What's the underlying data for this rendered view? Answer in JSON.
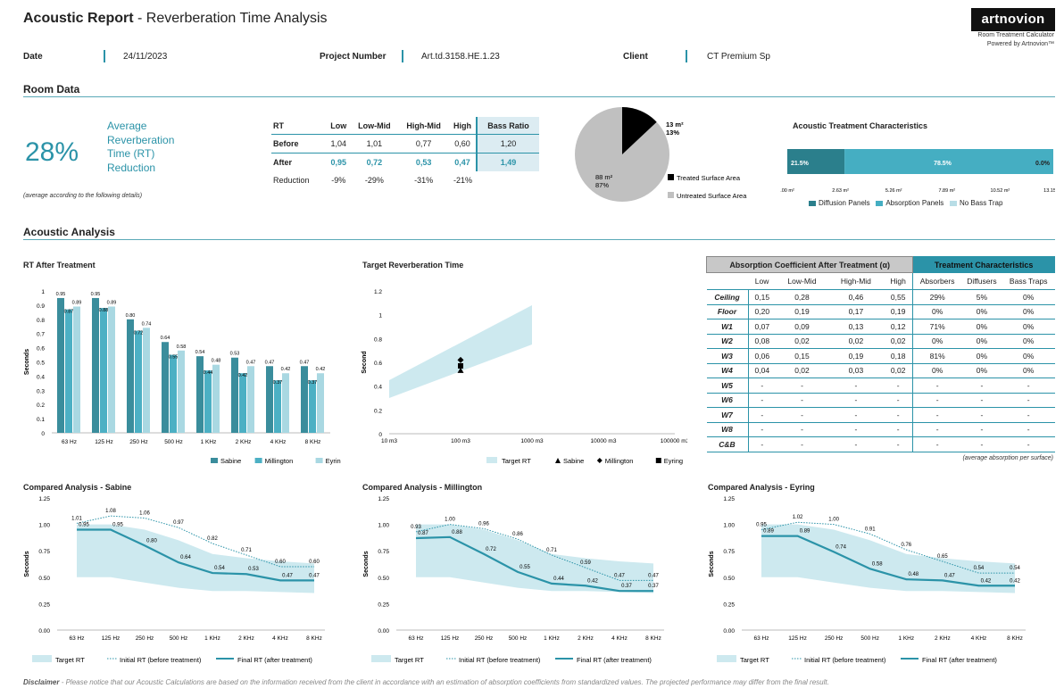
{
  "header": {
    "title_bold": "Acoustic Report",
    "title_rest": " - Reverberation Time Analysis",
    "logo": "artnovion",
    "logo_sub1": "Room Treatment Calculator",
    "logo_sub2": "Powered by Artnovion™"
  },
  "meta": {
    "date_label": "Date",
    "date_value": "24/11/2023",
    "project_label": "Project Number",
    "project_value": "Art.td.3158.HE.1.23",
    "client_label": "Client",
    "client_value": "CT Premium Sp"
  },
  "room_data": {
    "title": "Room Data",
    "percent": "28%",
    "avg_lines": [
      "Average",
      "Reverberation",
      "Time (RT)",
      "Reduction"
    ],
    "note": "(average according to the following details)",
    "rt_table": {
      "headers": [
        "RT",
        "Low",
        "Low-Mid",
        "High-Mid",
        "High",
        "Bass Ratio"
      ],
      "rows": [
        {
          "label": "Before",
          "values": [
            "1,04",
            "1,01",
            "0,77",
            "0,60",
            "1,20"
          ]
        },
        {
          "label": "After",
          "values": [
            "0,95",
            "0,72",
            "0,53",
            "0,47",
            "1,49"
          ]
        },
        {
          "label": "Reduction",
          "values": [
            "-9%",
            "-29%",
            "-31%",
            "-21%",
            ""
          ]
        }
      ]
    },
    "pie": {
      "treated_area": "13 m²",
      "treated_pct": "13%",
      "untreated_area": "88 m²",
      "untreated_pct": "87%",
      "treated_fraction": 0.13,
      "legend_treated": "Treated Surface Area",
      "legend_untreated": "Untreated Surface Area",
      "treated_color": "#000000",
      "untreated_color": "#c0c0c0"
    },
    "treatment_characteristics": {
      "title": "Acoustic Treatment Characteristics",
      "segments": [
        {
          "label": "21.5%",
          "fraction": 0.215,
          "color": "#2b7f8c"
        },
        {
          "label": "78.5%",
          "fraction": 0.785,
          "color": "#45aec2"
        },
        {
          "label": "0.0%",
          "fraction": 0.0,
          "color": "#b8dde6"
        }
      ],
      "axis_ticks": [
        ".00 m²",
        "2.63 m²",
        "5.26 m²",
        "7.89 m²",
        "10.52 m²",
        "13.15 m²"
      ],
      "legend": [
        "Diffusion Panels",
        "Absorption Panels",
        "No Bass Trap"
      ]
    }
  },
  "acoustic_analysis": {
    "title": "Acoustic Analysis",
    "table_note": "(average absorption per surface)",
    "absorption_table": {
      "title": "Absorption Coefficient After Treatment (α)",
      "treatment_title": "Treatment Characteristics",
      "headers": [
        "Low",
        "Low-Mid",
        "High-Mid",
        "High",
        "Absorbers",
        "Diffusers",
        "Bass Traps"
      ],
      "rows": [
        {
          "label": "Ceiling",
          "values": [
            "0,15",
            "0,28",
            "0,46",
            "0,55",
            "29%",
            "5%",
            "0%"
          ]
        },
        {
          "label": "Floor",
          "values": [
            "0,20",
            "0,19",
            "0,17",
            "0,19",
            "0%",
            "0%",
            "0%"
          ]
        },
        {
          "label": "W1",
          "values": [
            "0,07",
            "0,09",
            "0,13",
            "0,12",
            "71%",
            "0%",
            "0%"
          ]
        },
        {
          "label": "W2",
          "values": [
            "0,08",
            "0,02",
            "0,02",
            "0,02",
            "0%",
            "0%",
            "0%"
          ]
        },
        {
          "label": "W3",
          "values": [
            "0,06",
            "0,15",
            "0,19",
            "0,18",
            "81%",
            "0%",
            "0%"
          ]
        },
        {
          "label": "W4",
          "values": [
            "0,04",
            "0,02",
            "0,03",
            "0,02",
            "0%",
            "0%",
            "0%"
          ]
        },
        {
          "label": "W5",
          "values": [
            "-",
            "-",
            "-",
            "-",
            "-",
            "-",
            "-"
          ]
        },
        {
          "label": "W6",
          "values": [
            "-",
            "-",
            "-",
            "-",
            "-",
            "-",
            "-"
          ]
        },
        {
          "label": "W7",
          "values": [
            "-",
            "-",
            "-",
            "-",
            "-",
            "-",
            "-"
          ]
        },
        {
          "label": "W8",
          "values": [
            "-",
            "-",
            "-",
            "-",
            "-",
            "-",
            "-"
          ]
        },
        {
          "label": "C&B",
          "values": [
            "-",
            "-",
            "-",
            "-",
            "-",
            "-",
            "-"
          ]
        }
      ]
    }
  },
  "chart_data": [
    {
      "type": "bar",
      "title": "RT After Treatment",
      "ylabel": "Seconds",
      "ylim": [
        0,
        1
      ],
      "yticks": [
        "0",
        "0.1",
        "0.2",
        "0.3",
        "0.4",
        "0.5",
        "0.6",
        "0.7",
        "0.8",
        "0.9",
        "1"
      ],
      "categories": [
        "63 Hz",
        "125 Hz",
        "250 Hz",
        "500 Hz",
        "1 KHz",
        "2 KHz",
        "4 KHz",
        "8 KHz"
      ],
      "series": [
        {
          "name": "Sabine",
          "color": "#3a8d9c",
          "values": [
            0.95,
            0.95,
            0.8,
            0.64,
            0.54,
            0.53,
            0.47,
            0.47
          ],
          "labels": [
            "0.95",
            "0.95",
            "0.80",
            "0.64",
            "0.54",
            "0.53",
            "0.47",
            "0.47"
          ]
        },
        {
          "name": "Millington",
          "color": "#4cb0c4",
          "values": [
            0.87,
            0.88,
            0.72,
            0.55,
            0.44,
            0.42,
            0.37,
            0.37
          ],
          "labels": [
            "0.87",
            "0.88",
            "0.72",
            "0.55",
            "0.44",
            "0.42",
            "0.37",
            "0.37"
          ]
        },
        {
          "name": "Eyring",
          "color": "#a9d8e2",
          "values": [
            0.89,
            0.89,
            0.74,
            0.58,
            0.48,
            0.47,
            0.42,
            0.42
          ],
          "labels": [
            "0.89",
            "0.89",
            "0.74",
            "0.58",
            "0.48",
            "0.47",
            "0.42",
            "0.42"
          ]
        }
      ],
      "legend_position": "bottom-right"
    },
    {
      "type": "scatter",
      "title": "Target Reverberation Time",
      "ylabel": "Second",
      "ylim": [
        0,
        1.2
      ],
      "yticks": [
        "0",
        "0.2",
        "0.4",
        "0.6",
        "0.8",
        "1",
        "1.2"
      ],
      "xscale": "log",
      "xticks": [
        "10 m3",
        "100 m3",
        "1000 m3",
        "10000 m3",
        "100000 m3"
      ],
      "target_band": {
        "name": "Target RT",
        "color": "#cde9ef",
        "x": [
          10,
          1000
        ],
        "lower_start": 0.3,
        "lower_end": 0.75,
        "upper_start": 0.45,
        "upper_end": 1.08
      },
      "points": [
        {
          "name": "Sabine",
          "x": 100,
          "y": 0.53,
          "marker": "triangle"
        },
        {
          "name": "Millington",
          "x": 100,
          "y": 0.62,
          "marker": "diamond"
        },
        {
          "name": "Eyring",
          "x": 100,
          "y": 0.57,
          "marker": "square"
        }
      ],
      "legend_position": "bottom-right"
    },
    {
      "type": "line",
      "title": "Compared Analysis - Sabine",
      "ylabel": "Seconds",
      "ylim": [
        0,
        1.25
      ],
      "yticks": [
        "0.00",
        "0.25",
        "0.50",
        "0.75",
        "1.00",
        "1.25"
      ],
      "categories": [
        "63 Hz",
        "125 Hz",
        "250 Hz",
        "500 Hz",
        "1 KHz",
        "2 KHz",
        "4 KHz",
        "8 KHz"
      ],
      "band": {
        "name": "Target RT",
        "lower": [
          0.5,
          0.5,
          0.45,
          0.4,
          0.37,
          0.37,
          0.36,
          0.35
        ],
        "upper": [
          1.0,
          1.0,
          0.95,
          0.85,
          0.72,
          0.68,
          0.65,
          0.63
        ]
      },
      "initial": {
        "name": "Initial RT (before treatment)",
        "values": [
          1.01,
          1.08,
          1.06,
          0.97,
          0.82,
          0.71,
          0.6,
          0.6
        ],
        "labels": [
          "1.01",
          "1.08",
          "1.06",
          "0.97",
          "0.82",
          "0.71",
          "0.60",
          "0.60"
        ]
      },
      "final": {
        "name": "Final RT (after treatment)",
        "values": [
          0.95,
          0.95,
          0.8,
          0.64,
          0.54,
          0.53,
          0.47,
          0.47
        ],
        "labels": [
          "0.95",
          "0.95",
          "0.80",
          "0.64",
          "0.54",
          "0.53",
          "0.47",
          "0.47"
        ]
      }
    },
    {
      "type": "line",
      "title": "Compared Analysis - Millington",
      "ylabel": "Seconds",
      "ylim": [
        0,
        1.25
      ],
      "yticks": [
        "0.00",
        "0.25",
        "0.50",
        "0.75",
        "1.00",
        "1.25"
      ],
      "categories": [
        "63 Hz",
        "125 Hz",
        "250 Hz",
        "500 Hz",
        "1 KHz",
        "2 KHz",
        "4 KHz",
        "8 KHz"
      ],
      "band": {
        "name": "Target RT",
        "lower": [
          0.5,
          0.5,
          0.45,
          0.4,
          0.37,
          0.37,
          0.36,
          0.35
        ],
        "upper": [
          1.0,
          1.0,
          0.95,
          0.85,
          0.72,
          0.68,
          0.65,
          0.63
        ]
      },
      "initial": {
        "name": "Initial RT (before treatment)",
        "values": [
          0.93,
          1.0,
          0.96,
          0.86,
          0.71,
          0.59,
          0.47,
          0.47
        ],
        "labels": [
          "0.93",
          "1.00",
          "0.96",
          "0.86",
          "0.71",
          "0.59",
          "0.47",
          "0.47"
        ]
      },
      "final": {
        "name": "Final RT (after treatment)",
        "values": [
          0.87,
          0.88,
          0.72,
          0.55,
          0.44,
          0.42,
          0.37,
          0.37
        ],
        "labels": [
          "0.87",
          "0.88",
          "0.72",
          "0.55",
          "0.44",
          "0.42",
          "0.37",
          "0.37"
        ]
      }
    },
    {
      "type": "line",
      "title": "Compared Analysis - Eyring",
      "ylabel": "Seconds",
      "ylim": [
        0,
        1.25
      ],
      "yticks": [
        "0.00",
        "0.25",
        "0.50",
        "0.75",
        "1.00",
        "1.25"
      ],
      "categories": [
        "63 Hz",
        "125 Hz",
        "250 Hz",
        "500 Hz",
        "1 KHz",
        "2 KHz",
        "4 KHz",
        "8 KHz"
      ],
      "band": {
        "name": "Target RT",
        "lower": [
          0.5,
          0.5,
          0.45,
          0.4,
          0.37,
          0.37,
          0.36,
          0.35
        ],
        "upper": [
          1.0,
          1.0,
          0.95,
          0.85,
          0.72,
          0.68,
          0.65,
          0.63
        ]
      },
      "initial": {
        "name": "Initial RT (before treatment)",
        "values": [
          0.95,
          1.02,
          1.0,
          0.91,
          0.76,
          0.65,
          0.54,
          0.54
        ],
        "labels": [
          "0.95",
          "1.02",
          "1.00",
          "0.91",
          "0.76",
          "0.65",
          "0.54",
          "0.54"
        ]
      },
      "final": {
        "name": "Final RT (after treatment)",
        "values": [
          0.89,
          0.89,
          0.74,
          0.58,
          0.48,
          0.47,
          0.42,
          0.42
        ],
        "labels": [
          "0.89",
          "0.89",
          "0.74",
          "0.58",
          "0.48",
          "0.47",
          "0.42",
          "0.42"
        ]
      }
    }
  ],
  "disclaimer": {
    "label": "Disclaimer",
    "text": " - Please notice that our Acoustic Calculations are based on the information received from the client in accordance with an estimation of absorption coefficients from standardized values. The projected performance may differ from the final result."
  }
}
